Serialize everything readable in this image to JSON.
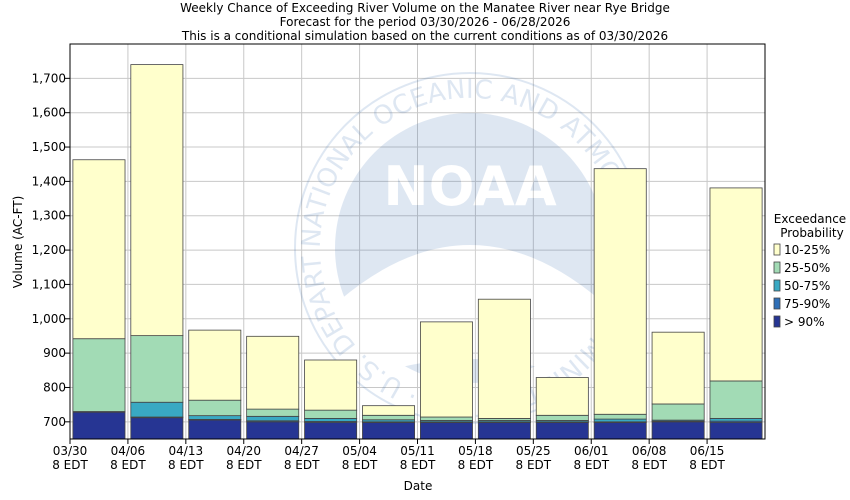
{
  "titles": [
    "Weekly Chance of Exceeding River Volume on the Manatee River near Rye Bridge",
    "Forecast for the period 03/30/2026 - 06/28/2026",
    "This is a conditional simulation based on the current conditions as of 03/30/2026"
  ],
  "watermark": {
    "logo_text": "NOAA",
    "ring_text": "NATIONAL OCEANIC AND ATMOSPHERIC ADMINISTRATION · U.S. DEPARTMENT OF COMMERCE"
  },
  "chart_data": {
    "type": "bar",
    "stacked": true,
    "xlabel": "Date",
    "ylabel": "Volume (AC-FT)",
    "ylim": [
      650,
      1800
    ],
    "yticks": [
      700,
      800,
      900,
      1000,
      1100,
      1200,
      1300,
      1400,
      1500,
      1600,
      1700
    ],
    "ytick_labels": [
      "700",
      "800",
      "900",
      "1,000",
      "1,100",
      "1,200",
      "1,300",
      "1,400",
      "1,500",
      "1,600",
      "1,700"
    ],
    "xtick_labels": [
      [
        "03/30",
        "8 EDT"
      ],
      [
        "04/06",
        "8 EDT"
      ],
      [
        "04/13",
        "8 EDT"
      ],
      [
        "04/20",
        "8 EDT"
      ],
      [
        "04/27",
        "8 EDT"
      ],
      [
        "05/04",
        "8 EDT"
      ],
      [
        "05/11",
        "8 EDT"
      ],
      [
        "05/18",
        "8 EDT"
      ],
      [
        "05/25",
        "8 EDT"
      ],
      [
        "06/01",
        "8 EDT"
      ],
      [
        "06/08",
        "8 EDT"
      ],
      [
        "06/15",
        "8 EDT"
      ]
    ],
    "grid": true,
    "legend_position": "right",
    "legend_title": [
      "Exceedance",
      "Probability"
    ],
    "series": [
      {
        "name": "> 90%",
        "color": "#263593",
        "tops": [
          728,
          712,
          705,
          700,
          698,
          698,
          698,
          698,
          698,
          698,
          700,
          698
        ]
      },
      {
        "name": "75-90%",
        "color": "#2f6fb7",
        "tops": [
          729,
          714,
          707,
          703,
          701,
          700,
          700,
          700,
          700,
          700,
          702,
          702
        ]
      },
      {
        "name": "50-75%",
        "color": "#39a9c3",
        "tops": [
          730,
          757,
          718,
          716,
          710,
          706,
          704,
          704,
          704,
          708,
          705,
          710
        ]
      },
      {
        "name": "25-50%",
        "color": "#a2dbb5",
        "tops": [
          942,
          951,
          763,
          737,
          734,
          719,
          714,
          710,
          719,
          722,
          752,
          819
        ]
      },
      {
        "name": "10-25%",
        "color": "#ffffcc",
        "tops": [
          1463,
          1740,
          967,
          949,
          880,
          747,
          991,
          1057,
          829,
          1437,
          961,
          1381
        ]
      }
    ]
  }
}
